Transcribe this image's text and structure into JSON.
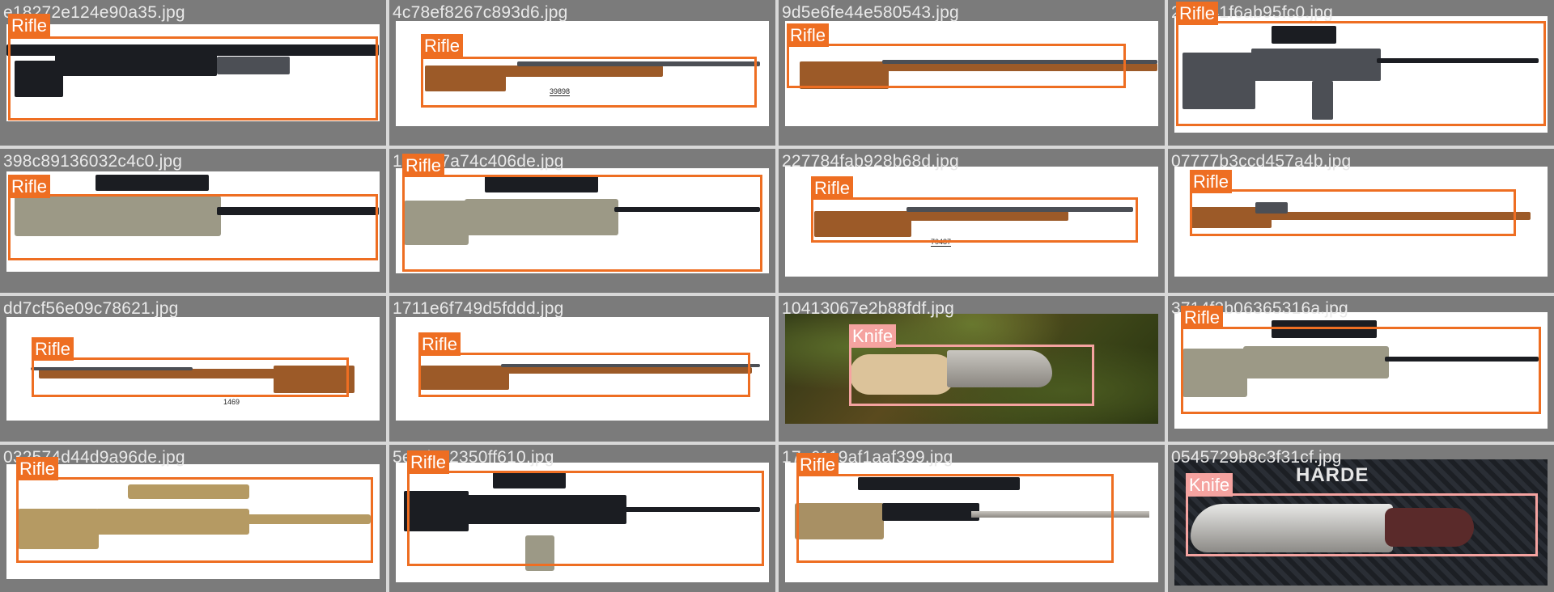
{
  "tiles": [
    {
      "filename": "e18272e124e90a35.jpg",
      "label": "Rifle"
    },
    {
      "filename": "4c78ef8267c893d6.jpg",
      "label": "Rifle",
      "tag": "39898"
    },
    {
      "filename": "9d5e6fe44e580543.jpg",
      "label": "Rifle"
    },
    {
      "filename": "2e8b41f6ab95fc0.jpg",
      "label": "Rifle"
    },
    {
      "filename": "398c89136032c4c0.jpg",
      "label": "Rifle"
    },
    {
      "filename": "1e5b37a74c406de.jpg",
      "label": "Rifle"
    },
    {
      "filename": "227784fab928b68d.jpg",
      "label": "Rifle",
      "tag": "70487"
    },
    {
      "filename": "07777b3ccd457a4b.jpg",
      "label": "Rifle"
    },
    {
      "filename": "dd7cf56e09c78621.jpg",
      "label": "Rifle",
      "tag": "1469"
    },
    {
      "filename": "1711e6f749d5fddd.jpg",
      "label": "Rifle"
    },
    {
      "filename": "10413067e2b88fdf.jpg",
      "label": "Knife"
    },
    {
      "filename": "3714f2b06365316a.jpg",
      "label": "Rifle"
    },
    {
      "filename": "032574d44d9a96de.jpg",
      "label": "Rifle"
    },
    {
      "filename": "5e8d0c2350ff610.jpg",
      "label": "Rifle"
    },
    {
      "filename": "17e6119af1aaf399.jpg",
      "label": "Rifle"
    },
    {
      "filename": "0545729b8c3f31cf.jpg",
      "label": "Knife",
      "print": "HARDE"
    }
  ],
  "colors": {
    "rifle_box": "#ee6e22",
    "knife_box": "#f5a3a0",
    "tile_bg": "#7b7b7b"
  }
}
